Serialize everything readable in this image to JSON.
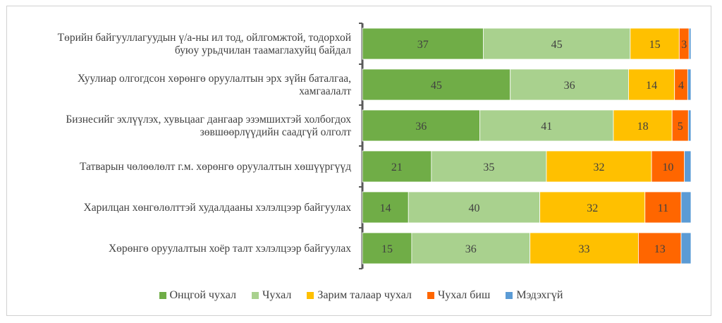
{
  "chart_data": {
    "type": "bar",
    "orientation": "horizontal",
    "stacked": true,
    "categories": [
      [
        "Төрийн байгууллагуудын ү/а-ны ил тод, ойлгомжтой, тодорхой",
        "буюу урьдчилан таамаглахуйц байдал"
      ],
      [
        "Хуулиар олгогдсон хөрөнгө оруулалтын эрх зүйн баталгаа,",
        "хамгаалалт"
      ],
      [
        "Бизнесийг эхлүүлэх, хувьцааг дангаар эзэмшихтэй холбогдох",
        "зөвшөөрлүүдийн саадгүй олголт"
      ],
      [
        "Татварын чөлөөлөлт г.м. хөрөнгө оруулалтын хөшүүргүүд"
      ],
      [
        "Харилцан хөнгөлөлттэй худалдааны хэлэлцээр байгуулах"
      ],
      [
        "Хөрөнгө оруулалтын хоёр талт хэлэлцээр байгуулах"
      ]
    ],
    "series": [
      {
        "name": "Онцгой чухал",
        "color": "#70ad47",
        "values": [
          37,
          45,
          36,
          21,
          14,
          15
        ]
      },
      {
        "name": "Чухал",
        "color": "#a9d18e",
        "values": [
          45,
          36,
          41,
          35,
          40,
          36
        ]
      },
      {
        "name": "Зарим талаар чухал",
        "color": "#ffc000",
        "values": [
          15,
          14,
          18,
          32,
          32,
          33
        ]
      },
      {
        "name": "Чухал биш",
        "color": "#ff6600",
        "values": [
          3,
          4,
          5,
          10,
          11,
          13
        ]
      },
      {
        "name": "Мэдэхгүй",
        "color": "#5b9bd5",
        "values": [
          0.6,
          1,
          0.8,
          2,
          3,
          3
        ]
      }
    ],
    "data_labels": [
      [
        37,
        45,
        15,
        3,
        null
      ],
      [
        45,
        36,
        14,
        4,
        null
      ],
      [
        36,
        41,
        18,
        5,
        null
      ],
      [
        21,
        35,
        32,
        10,
        null
      ],
      [
        14,
        40,
        32,
        11,
        null
      ],
      [
        15,
        36,
        33,
        13,
        null
      ]
    ],
    "legend_position": "bottom",
    "grid": false
  }
}
